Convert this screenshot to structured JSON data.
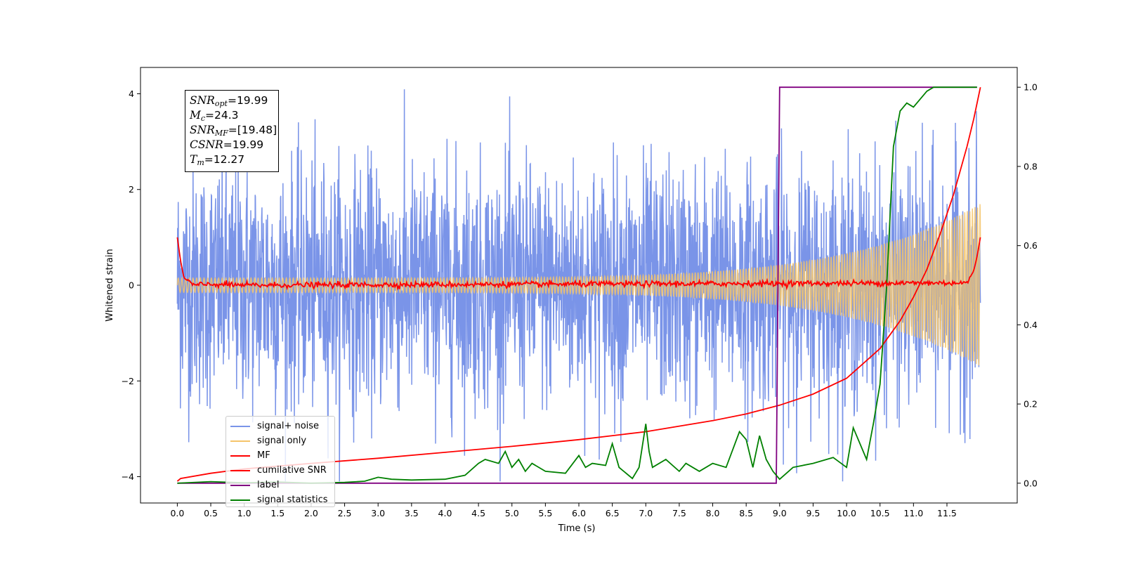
{
  "chart_data": {
    "type": "line",
    "xlabel": "Time (s)",
    "ylabel": "Whitened strain",
    "xlim": [
      -0.55,
      12.55
    ],
    "ylim": [
      -4.55,
      4.55
    ],
    "y2lim": [
      -0.05,
      1.05
    ],
    "x_ticks": [
      "0.0",
      "0.5",
      "1.0",
      "1.5",
      "2.0",
      "2.5",
      "3.0",
      "3.5",
      "4.0",
      "4.5",
      "5.0",
      "5.5",
      "6.0",
      "6.5",
      "7.0",
      "7.5",
      "8.0",
      "8.5",
      "9.0",
      "9.5",
      "10.0",
      "10.5",
      "11.0",
      "11.5"
    ],
    "y_ticks": [
      "−4",
      "−2",
      "0",
      "2",
      "4"
    ],
    "y2_ticks": [
      "0.0",
      "0.2",
      "0.4",
      "0.6",
      "0.8",
      "1.0"
    ],
    "grid": false,
    "legend_position": "lower-left",
    "colors": {
      "signal_noise": "#7a94e8",
      "signal_only": "#f5c46a",
      "mf": "#ff0000",
      "cumulative_snr": "#ff0000",
      "label": "#800080",
      "signal_statistics": "#008000"
    },
    "annotation": {
      "snr_opt": "=19.99",
      "mc": "=24.3",
      "snr_mf": "=[19.48]",
      "csnr": "=19.99",
      "tm": "=12.27"
    },
    "series": [
      {
        "name": "signal+ noise",
        "axis": "left",
        "note": "noisy whitened strain, roughly ±2.5 envelope with peaks to ±4",
        "envelope": [
          -4.1,
          4.1
        ]
      },
      {
        "name": "signal only",
        "axis": "left",
        "amplitude_start": 0.15,
        "amplitude_end": 1.7,
        "x_range": [
          0.0,
          12.0
        ]
      },
      {
        "name": "MF",
        "axis": "left",
        "x": [
          0.0,
          0.05,
          0.1,
          0.15,
          0.25,
          0.5,
          1.0,
          11.8,
          11.9,
          11.95,
          12.0
        ],
        "y": [
          1.0,
          0.5,
          0.15,
          0.1,
          0.0,
          0.02,
          0.0,
          0.05,
          0.3,
          0.6,
          1.0
        ]
      },
      {
        "name": "cumilative SNR",
        "axis": "right",
        "x": [
          0.0,
          0.05,
          0.5,
          1.0,
          2.0,
          3.0,
          4.0,
          5.0,
          6.0,
          7.0,
          8.0,
          8.5,
          9.0,
          9.5,
          10.0,
          10.5,
          10.8,
          11.0,
          11.2,
          11.4,
          11.6,
          11.8,
          11.9,
          12.0
        ],
        "y": [
          0.005,
          0.012,
          0.025,
          0.036,
          0.05,
          0.063,
          0.078,
          0.093,
          0.11,
          0.13,
          0.158,
          0.175,
          0.197,
          0.225,
          0.265,
          0.34,
          0.41,
          0.47,
          0.54,
          0.63,
          0.73,
          0.85,
          0.92,
          1.0
        ]
      },
      {
        "name": "label",
        "axis": "right",
        "x": [
          0.0,
          8.95,
          9.0,
          11.95
        ],
        "y": [
          0.0,
          0.0,
          1.0,
          1.0
        ]
      },
      {
        "name": "signal statistics",
        "axis": "right",
        "x": [
          0.0,
          0.5,
          1.0,
          1.5,
          2.0,
          2.5,
          2.8,
          3.0,
          3.2,
          3.5,
          4.0,
          4.3,
          4.5,
          4.6,
          4.8,
          4.9,
          5.0,
          5.1,
          5.2,
          5.3,
          5.5,
          5.8,
          6.0,
          6.1,
          6.2,
          6.4,
          6.5,
          6.6,
          6.8,
          6.9,
          7.0,
          7.05,
          7.1,
          7.3,
          7.5,
          7.6,
          7.8,
          8.0,
          8.2,
          8.4,
          8.5,
          8.6,
          8.7,
          8.8,
          8.9,
          9.0,
          9.2,
          9.5,
          9.8,
          10.0,
          10.1,
          10.3,
          10.4,
          10.5,
          10.6,
          10.7,
          10.8,
          10.9,
          11.0,
          11.1,
          11.2,
          11.3,
          11.5,
          11.7,
          11.95
        ],
        "y": [
          0.0,
          0.004,
          0.001,
          0.003,
          0.0,
          0.002,
          0.005,
          0.015,
          0.01,
          0.008,
          0.01,
          0.02,
          0.05,
          0.06,
          0.05,
          0.08,
          0.04,
          0.06,
          0.03,
          0.05,
          0.03,
          0.025,
          0.07,
          0.04,
          0.05,
          0.045,
          0.1,
          0.04,
          0.012,
          0.04,
          0.15,
          0.08,
          0.04,
          0.06,
          0.03,
          0.05,
          0.03,
          0.05,
          0.04,
          0.13,
          0.11,
          0.04,
          0.12,
          0.06,
          0.03,
          0.01,
          0.04,
          0.05,
          0.065,
          0.04,
          0.14,
          0.06,
          0.15,
          0.25,
          0.5,
          0.85,
          0.94,
          0.96,
          0.95,
          0.97,
          0.99,
          1.0,
          1.0,
          1.0,
          1.0
        ]
      }
    ]
  },
  "legend": [
    {
      "label": "signal+ noise",
      "color": "#7a94e8"
    },
    {
      "label": "signal only",
      "color": "#f5c46a"
    },
    {
      "label": "MF",
      "color": "#ff0000"
    },
    {
      "label": "cumilative SNR",
      "color": "#ff0000"
    },
    {
      "label": "label",
      "color": "#800080"
    },
    {
      "label": "signal statistics",
      "color": "#008000"
    }
  ]
}
